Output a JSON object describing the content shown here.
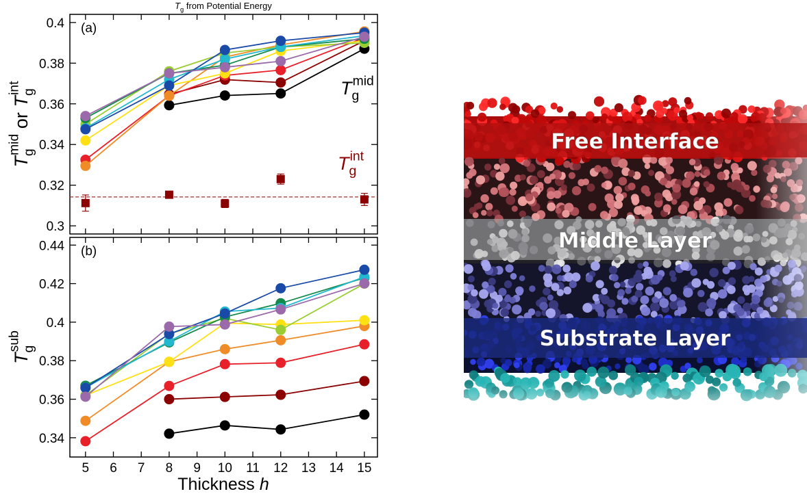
{
  "chart_data": [
    {
      "type": "line",
      "title": [
        "T",
        "g",
        "from Potential Energy"
      ],
      "ylabel": [
        "T",
        "g",
        "mid",
        "or",
        "T",
        "g",
        "int"
      ],
      "panel_label": "(a)",
      "annotations": [
        {
          "parts": [
            "T",
            "g",
            "mid"
          ],
          "color": "#000000"
        },
        {
          "parts": [
            "T",
            "g",
            "int"
          ],
          "color": "#8b0000"
        }
      ],
      "x": [
        5,
        8,
        10,
        12,
        15
      ],
      "xlim": [
        4.44,
        15.47
      ],
      "ylim": [
        0.296,
        0.404
      ],
      "yticks": [
        0.3,
        0.32,
        0.34,
        0.36,
        0.38,
        0.4
      ],
      "hline": 0.3142,
      "hline_color": "#a03030",
      "series": [
        {
          "color": "#000000",
          "values": [
            null,
            0.3593,
            0.3641,
            0.3651,
            0.3871
          ]
        },
        {
          "color": "#8b0000",
          "values": [
            null,
            0.3647,
            0.3719,
            0.3705,
            0.391
          ]
        },
        {
          "color": "#e8202a",
          "values": [
            0.3325,
            0.364,
            0.374,
            0.3766,
            0.3925
          ]
        },
        {
          "color": "#f08c28",
          "values": [
            0.3295,
            0.364,
            0.383,
            0.389,
            0.3956
          ]
        },
        {
          "color": "#ffe014",
          "values": [
            0.342,
            0.369,
            0.375,
            0.386,
            0.391
          ]
        },
        {
          "color": "#9acd32",
          "values": [
            0.35,
            0.376,
            0.385,
            0.388,
            0.39
          ]
        },
        {
          "color": "#138a4a",
          "values": [
            0.353,
            0.375,
            0.379,
            0.388,
            0.392
          ]
        },
        {
          "color": "#22b8d0",
          "values": [
            0.348,
            0.372,
            0.382,
            0.388,
            0.3935
          ]
        },
        {
          "color": "#1a4aa8",
          "values": [
            0.3475,
            0.369,
            0.3865,
            0.391,
            0.395
          ]
        },
        {
          "color": "#9a6aaa",
          "values": [
            0.354,
            0.375,
            0.378,
            0.381,
            0.393
          ]
        },
        {
          "color": "#8b0000",
          "marker": "square",
          "connect": false,
          "values": [
            0.3112,
            0.3153,
            0.311,
            0.323,
            0.313
          ],
          "errors": [
            0.004,
            0.001,
            0.002,
            0.0025,
            0.003
          ]
        }
      ]
    },
    {
      "type": "line",
      "ylabel": [
        "T",
        "g",
        "sub"
      ],
      "xlabel": [
        "Thickness",
        "h"
      ],
      "panel_label": "(b)",
      "x": [
        5,
        8,
        10,
        12,
        15
      ],
      "xlim": [
        4.44,
        15.47
      ],
      "ylim": [
        0.33,
        0.444
      ],
      "xticks": [
        5,
        6,
        7,
        8,
        9,
        10,
        11,
        12,
        13,
        14,
        15
      ],
      "yticks": [
        0.34,
        0.36,
        0.38,
        0.4,
        0.42,
        0.44
      ],
      "series": [
        {
          "color": "#000000",
          "values": [
            null,
            0.3421,
            0.3464,
            0.3443,
            0.352
          ]
        },
        {
          "color": "#8b0000",
          "values": [
            null,
            0.36,
            0.3612,
            0.3623,
            0.3694
          ]
        },
        {
          "color": "#e8202a",
          "values": [
            0.3382,
            0.3669,
            0.3782,
            0.3789,
            0.3885
          ]
        },
        {
          "color": "#f08c28",
          "values": [
            0.3488,
            0.3794,
            0.386,
            0.3906,
            0.398
          ]
        },
        {
          "color": "#ffe014",
          "values": [
            0.362,
            0.3794,
            0.3995,
            0.3988,
            0.401
          ]
        },
        {
          "color": "#9acd32",
          "values": [
            0.362,
            0.394,
            0.402,
            0.396,
            0.42
          ]
        },
        {
          "color": "#138a4a",
          "values": [
            0.367,
            0.3895,
            0.4027,
            0.4098,
            0.423
          ]
        },
        {
          "color": "#22b8d0",
          "values": [
            0.366,
            0.39,
            0.4055,
            0.4073,
            0.4235
          ]
        },
        {
          "color": "#1a4aa8",
          "values": [
            0.3659,
            0.3938,
            0.4045,
            0.4176,
            0.4272
          ]
        },
        {
          "color": "#9a6aaa",
          "values": [
            0.3613,
            0.3977,
            0.3988,
            0.4066,
            0.4201
          ]
        }
      ]
    }
  ],
  "image": {
    "labels": [
      "Free Interface",
      "Middle Layer",
      "Substrate Layer"
    ]
  }
}
